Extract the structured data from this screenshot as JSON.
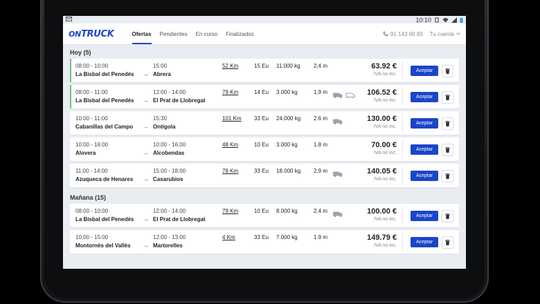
{
  "statusbar": {
    "left_icon": "notification-icon",
    "time": "10:10"
  },
  "nav": {
    "logo": {
      "prefix": "ON",
      "main": "TRUCK"
    },
    "tabs": [
      {
        "label": "Ofertas",
        "active": true
      },
      {
        "label": "Pendientes",
        "active": false
      },
      {
        "label": "En curso",
        "active": false
      },
      {
        "label": "Finalizados",
        "active": false
      }
    ],
    "phone": "91 143 60 83",
    "account": "Tu cuenta"
  },
  "sections": [
    {
      "title": "Hoy (5)",
      "offers": [
        {
          "from_time": "08:00 - 10:00",
          "from_place": "La Bisbal del Penedès",
          "to_time": "15:00",
          "to_place": "Abrera",
          "km": "52 Km",
          "eu": "15 Eu",
          "kg": "11.000 kg",
          "m": "2,4 m",
          "trucks": [],
          "price": "63.92 €",
          "iva": "IVA no inc.",
          "new": true
        },
        {
          "from_time": "08:00 - 11:00",
          "from_place": "La Bisbal del Penedès",
          "to_time": "12:00 - 14:00",
          "to_place": "El Prat de Llobregat",
          "km": "79 Km",
          "eu": "14 Eu",
          "kg": "3.000 kg",
          "m": "1,9 m",
          "trucks": [
            "truck-icon",
            "van-icon"
          ],
          "price": "106.52 €",
          "iva": "IVA no inc.",
          "new": true
        },
        {
          "from_time": "10:00 - 11:00",
          "from_place": "Cabanillas del Campo",
          "to_time": "15:30",
          "to_place": "Ontígola",
          "km": "101 Km",
          "eu": "33 Eu",
          "kg": "24.000 kg",
          "m": "2.6 m",
          "trucks": [
            "truck-icon"
          ],
          "price": "130.00 €",
          "iva": "IVA no inc.",
          "new": false
        },
        {
          "from_time": "10:00 - 16:00",
          "from_place": "Alovera",
          "to_time": "10:00 - 16:00",
          "to_place": "Alcobendas",
          "km": "48 Km",
          "eu": "10 Eu",
          "kg": "3.000 kg",
          "m": "1.8 m",
          "trucks": [],
          "price": "70.00 €",
          "iva": "IVA no inc.",
          "new": false
        },
        {
          "from_time": "11:00 - 14:00",
          "from_place": "Azuqueca de Henares",
          "to_time": "15:00 - 18:00",
          "to_place": "Casarubios",
          "km": "78 Km",
          "eu": "33 Eu",
          "kg": "18.000 kg",
          "m": "2,9 m",
          "trucks": [
            "truck-icon"
          ],
          "price": "140.05 €",
          "iva": "IVA no inc.",
          "new": false
        }
      ]
    },
    {
      "title": "Mañana (15)",
      "offers": [
        {
          "from_time": "08:00 - 10:00",
          "from_place": "La Bisbal del Penedès",
          "to_time": "12:00 - 14:00",
          "to_place": "El Prat de Llobregat",
          "km": "79 Km",
          "eu": "10 Eu",
          "kg": "8.000 kg",
          "m": "2.4 m",
          "trucks": [
            "truck-icon"
          ],
          "price": "100.00  €",
          "iva": "IVA no inc.",
          "new": false
        },
        {
          "from_time": "10:00 - 15:00",
          "from_place": "Montornès del Vallès",
          "to_time": "12:00 - 13:00",
          "to_place": "Martorelles",
          "km": "4 Km",
          "eu": "33 Eu",
          "kg": "7.000 kg",
          "m": "1.9 m",
          "trucks": [],
          "price": "149.79 €",
          "iva": "IVA no inc.",
          "new": false
        }
      ]
    }
  ],
  "labels": {
    "accept": "Aceptar"
  },
  "colors": {
    "brand": "#1b45c8",
    "new_offer": "#6cc28a"
  }
}
